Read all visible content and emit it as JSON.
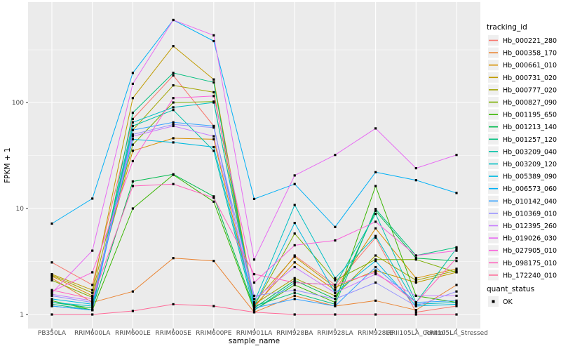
{
  "figure": {
    "background": "#FFFFFF",
    "panel_background": "#EBEBEB",
    "gridline_color": "#FFFFFF",
    "tick_color": "#333333",
    "axis_text_color": "#4D4D4D",
    "title_text_color": "#000000",
    "legend_key_background": "#EFEFEF"
  },
  "axes": {
    "x_title": "sample_name",
    "y_title": "FPKM + 1",
    "y_ticks": [
      "1",
      "10",
      "100"
    ],
    "y_tick_values": [
      1,
      10,
      100
    ]
  },
  "legend": {
    "color_title": "tracking_id",
    "shape_title": "quant_status",
    "shape_items": [
      {
        "label": "OK",
        "marker": "filled-black-square"
      }
    ],
    "position": "right"
  },
  "chart_data": {
    "type": "line",
    "title": "",
    "xlabel": "sample_name",
    "ylabel": "FPKM + 1",
    "y_scale": "log10",
    "ylim": [
      1,
      890
    ],
    "grid": true,
    "legend_position": "right",
    "point_shape": "filled-square",
    "point_color": "#000000",
    "x_categories": [
      "PB350LA",
      "RRIM600LA",
      "RRIM600LE",
      "RRIM600SE",
      "RRIM600PE",
      "RRIM901LA",
      "RRIM928BA",
      "RRIM928LA",
      "RRIM928LE",
      "RRII105LA_Control",
      "RRII105LA_Stressed"
    ],
    "series": [
      {
        "name": "Hb_000221_280",
        "color": "#F8766D",
        "values": [
          3.1,
          1.9,
          70,
          180,
          60,
          1.15,
          3.6,
          1.9,
          5.3,
          1.05,
          1.2
        ]
      },
      {
        "name": "Hb_000358_170",
        "color": "#EA8331",
        "values": [
          2.2,
          1.3,
          1.65,
          3.4,
          3.2,
          1.05,
          1.5,
          1.2,
          1.35,
          1.1,
          1.9
        ]
      },
      {
        "name": "Hb_000661_010",
        "color": "#D89000",
        "values": [
          2.3,
          1.5,
          35,
          46,
          45,
          1.2,
          3.1,
          1.7,
          6.5,
          2.2,
          2.7
        ]
      },
      {
        "name": "Hb_000731_020",
        "color": "#C09B00",
        "values": [
          2.4,
          1.7,
          110,
          340,
          165,
          1.3,
          3.5,
          1.8,
          2.6,
          2.0,
          2.5
        ]
      },
      {
        "name": "Hb_000777_020",
        "color": "#A3A500",
        "values": [
          2.35,
          1.6,
          55,
          145,
          125,
          1.25,
          2.2,
          1.5,
          3.6,
          2.1,
          2.6
        ]
      },
      {
        "name": "Hb_000827_090",
        "color": "#7CAE00",
        "values": [
          2.1,
          1.45,
          40,
          100,
          102,
          1.2,
          5.8,
          2.1,
          3.3,
          3.3,
          2.5
        ]
      },
      {
        "name": "Hb_001195_650",
        "color": "#39B600",
        "values": [
          1.35,
          1.1,
          10,
          20.8,
          11.6,
          1.1,
          1.9,
          1.3,
          16.3,
          1.5,
          1.3
        ]
      },
      {
        "name": "Hb_001213_140",
        "color": "#00BB4E",
        "values": [
          1.3,
          1.15,
          18,
          21,
          13,
          1.15,
          2.1,
          1.4,
          9.5,
          3.4,
          3.2
        ]
      },
      {
        "name": "Hb_001257_120",
        "color": "#00BF7D",
        "values": [
          1.25,
          1.1,
          80,
          190,
          155,
          1.2,
          1.6,
          1.25,
          9.9,
          3.6,
          4.3
        ]
      },
      {
        "name": "Hb_003209_040",
        "color": "#00C1A7",
        "values": [
          1.2,
          1.1,
          60,
          85,
          35,
          1.1,
          2.0,
          1.9,
          8.9,
          1.3,
          4.2
        ]
      },
      {
        "name": "Hb_003209_120",
        "color": "#00BFC4",
        "values": [
          1.3,
          1.2,
          65,
          90,
          100,
          1.3,
          10.8,
          2.2,
          5.5,
          1.25,
          1.3
        ]
      },
      {
        "name": "Hb_005389_090",
        "color": "#00BAE0",
        "values": [
          1.4,
          1.25,
          45,
          42,
          38,
          1.2,
          7.3,
          1.6,
          3.2,
          1.2,
          1.25
        ]
      },
      {
        "name": "Hb_006573_060",
        "color": "#00B0F6",
        "values": [
          7.2,
          12.4,
          190,
          600,
          380,
          12.3,
          17,
          6.7,
          22,
          18.5,
          14
        ]
      },
      {
        "name": "Hb_010142_040",
        "color": "#35A2FF",
        "values": [
          1.2,
          1.1,
          55,
          65,
          60,
          1.15,
          1.4,
          1.2,
          2.8,
          1.3,
          1.35
        ]
      },
      {
        "name": "Hb_010369_010",
        "color": "#9590FF",
        "values": [
          1.5,
          1.3,
          50,
          62,
          58,
          1.5,
          1.7,
          1.4,
          2.0,
          1.2,
          1.65
        ]
      },
      {
        "name": "Hb_012395_260",
        "color": "#C77CFF",
        "values": [
          1.55,
          1.35,
          48,
          60,
          48,
          1.4,
          2.8,
          1.6,
          2.4,
          1.5,
          1.5
        ]
      },
      {
        "name": "Hb_019026_030",
        "color": "#E76BF3",
        "values": [
          1.6,
          4.0,
          150,
          600,
          430,
          3.3,
          20.5,
          32,
          57,
          24,
          32
        ]
      },
      {
        "name": "Hb_027905_010",
        "color": "#FA62DB",
        "values": [
          1.65,
          2.5,
          28,
          110,
          115,
          2.0,
          4.5,
          5.0,
          7.5,
          3.6,
          4.0
        ]
      },
      {
        "name": "Hb_098175_010",
        "color": "#FF62BC",
        "values": [
          1.7,
          1.4,
          16.3,
          17,
          12.6,
          2.4,
          2.0,
          1.9,
          2.5,
          1.3,
          3.4
        ]
      },
      {
        "name": "Hb_172240_010",
        "color": "#FF6A98",
        "values": [
          1.0,
          1.0,
          1.08,
          1.25,
          1.2,
          1.05,
          1.0,
          1.0,
          1.0,
          1.0,
          1.0
        ]
      }
    ]
  }
}
